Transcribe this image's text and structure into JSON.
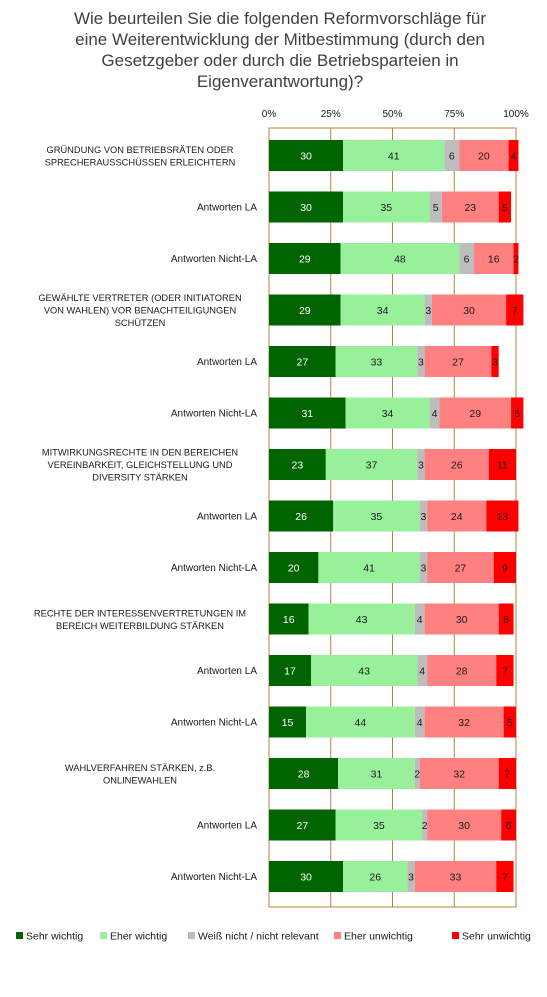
{
  "title_lines": [
    "Wie beurteilen Sie die folgenden Reformvorschläge für",
    "eine Weiterentwicklung der Mitbestimmung (durch den",
    "Gesetzgeber oder durch die Betriebsparteien in",
    "Eigenverantwortung)?"
  ],
  "chart_data": {
    "type": "bar",
    "orientation": "horizontal",
    "stacked": true,
    "percent_scale": true,
    "title": "Wie beurteilen Sie die folgenden Reformvorschläge für eine Weiterentwicklung der Mitbestimmung (durch den Gesetzgeber oder durch die Betriebsparteien in Eigenverantwortung)?",
    "xlim": [
      0,
      100
    ],
    "xticks": [
      "0%",
      "25%",
      "50%",
      "75%",
      "100%"
    ],
    "grid": true,
    "legend_position": "bottom",
    "categories": [
      [
        "GRÜNDUNG VON BETRIEBSRÄTEN ODER",
        "SPRECHERAUSSCHÜSSEN ERLEICHTERN"
      ],
      [
        "Antworten LA"
      ],
      [
        "Antworten Nicht-LA"
      ],
      [
        "GEWÄHLTE VERTRETER (ODER INITIATOREN",
        "VON WAHLEN) VOR BENACHTEILIGUNGEN",
        "SCHÜTZEN"
      ],
      [
        "Antworten LA"
      ],
      [
        "Antworten Nicht-LA"
      ],
      [
        "MITWIRKUNGSRECHTE IN DEN BEREICHEN",
        "VEREINBARKEIT, GLEICHSTELLUNG UND",
        "DIVERSITY STÄRKEN"
      ],
      [
        "Antworten LA"
      ],
      [
        "Antworten Nicht-LA"
      ],
      [
        "RECHTE DER INTERESSENVERTRETUNGEN IM",
        "BEREICH WEITERBILDUNG STÄRKEN"
      ],
      [
        "Antworten LA"
      ],
      [
        "Antworten Nicht-LA"
      ],
      [
        "WAHLVERFAHREN STÄRKEN, z.B.",
        "ONLINEWAHLEN"
      ],
      [
        "Antworten LA"
      ],
      [
        "Antworten Nicht-LA"
      ]
    ],
    "series": [
      {
        "name": "Sehr wichtig",
        "color": "#006400",
        "values": [
          30,
          30,
          29,
          29,
          27,
          31,
          23,
          26,
          20,
          16,
          17,
          15,
          28,
          27,
          30
        ]
      },
      {
        "name": "Eher wichtig",
        "color": "#99f09a",
        "values": [
          41,
          35,
          48,
          34,
          33,
          34,
          37,
          35,
          41,
          43,
          43,
          44,
          31,
          35,
          26
        ]
      },
      {
        "name": "Weiß nicht / nicht relevant",
        "color": "#bdbdbd",
        "values": [
          6,
          5,
          6,
          3,
          3,
          4,
          3,
          3,
          3,
          4,
          4,
          4,
          2,
          2,
          3
        ]
      },
      {
        "name": "Eher unwichtig",
        "color": "#ff8080",
        "values": [
          20,
          23,
          16,
          30,
          27,
          29,
          26,
          24,
          27,
          30,
          28,
          32,
          32,
          30,
          33
        ]
      },
      {
        "name": "Sehr unwichtig",
        "color": "#ff0000",
        "values": [
          4,
          5,
          2,
          7,
          3,
          5,
          11,
          13,
          9,
          6,
          7,
          5,
          7,
          6,
          7
        ]
      }
    ],
    "label_colors": [
      "#ffffff",
      "#1a1a1a",
      "#1a1a1a",
      "#1a1a1a",
      "#1a1a1a"
    ],
    "axis_color": "#c0803a"
  }
}
